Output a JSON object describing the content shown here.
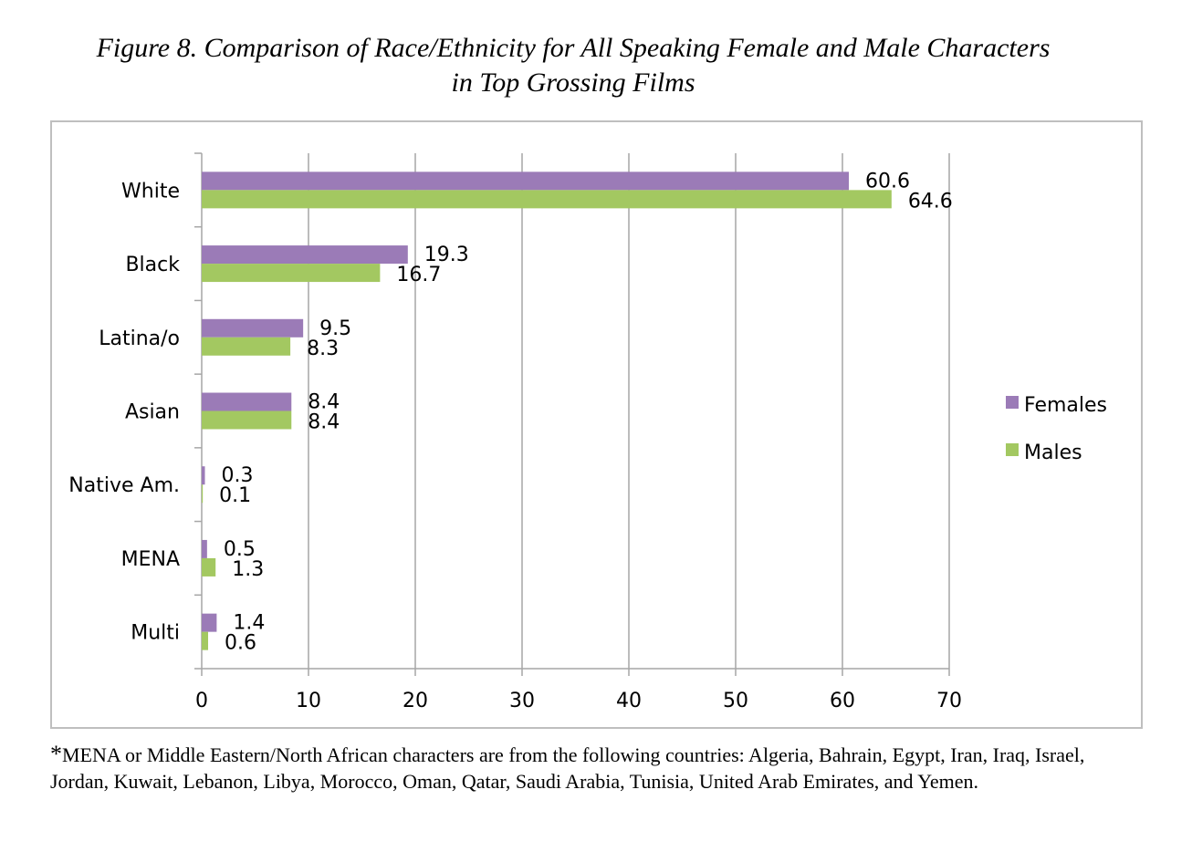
{
  "title_line1": "Figure 8.  Comparison of Race/Ethnicity for All Speaking Female and Male Characters",
  "title_line2": "in Top Grossing Films",
  "footnote_star": "*",
  "footnote_text": "MENA or Middle Eastern/North African characters are from the following countries:  Algeria, Bahrain, Egypt, Iran, Iraq, Israel, Jordan, Kuwait, Lebanon, Libya, Morocco, Oman, Qatar, Saudi Arabia, Tunisia, United Arab Emirates, and Yemen.",
  "chart_data": {
    "type": "bar",
    "orientation": "horizontal",
    "title": "Figure 8.  Comparison of Race/Ethnicity for All Speaking Female and Male Characters in Top Grossing Films",
    "categories": [
      "White",
      "Black",
      "Latina/o",
      "Asian",
      "Native Am.",
      "MENA",
      "Multi"
    ],
    "series": [
      {
        "name": "Females",
        "color": "#9b7bb7",
        "values": [
          60.6,
          19.3,
          9.5,
          8.4,
          0.3,
          0.5,
          1.4
        ],
        "labels": [
          "60.6",
          "19.3",
          "9.5",
          "8.4",
          "0.3",
          "0.5",
          "1.4"
        ]
      },
      {
        "name": "Males",
        "color": "#a3c861",
        "values": [
          64.6,
          16.7,
          8.3,
          8.4,
          0.1,
          1.3,
          0.6
        ],
        "labels": [
          "64.6",
          "16.7",
          "8.3",
          "8.4",
          "0.1",
          "1.3",
          "0.6"
        ]
      }
    ],
    "xlim": [
      0,
      70
    ],
    "xticks": [
      "0",
      "10",
      "20",
      "30",
      "40",
      "50",
      "60",
      "70"
    ],
    "grid": true,
    "legend_position": "right",
    "xlabel": "",
    "ylabel": ""
  }
}
